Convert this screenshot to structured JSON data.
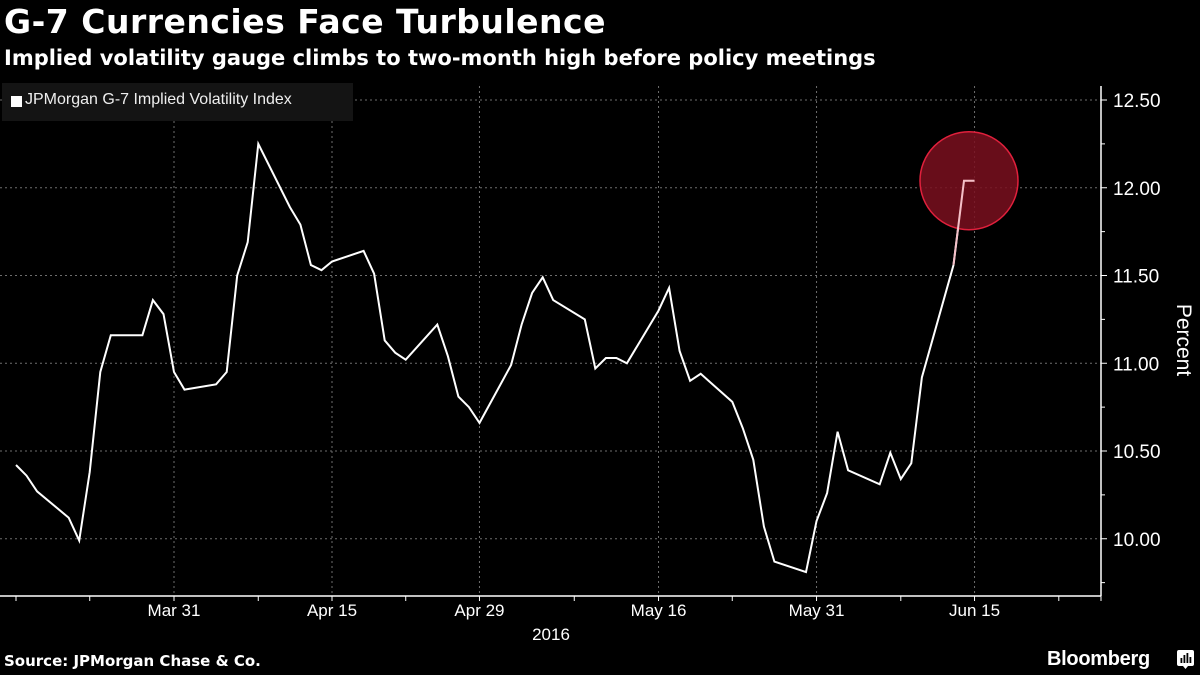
{
  "header": {
    "title": "G-7 Currencies Face Turbulence",
    "subtitle": "Implied volatility gauge climbs to two-month high before policy meetings"
  },
  "legend": {
    "label": "JPMorgan G-7 Implied Volatility Index",
    "swatch_color": "#ffffff"
  },
  "footer": {
    "source": "Source: JPMorgan Chase & Co.",
    "brand": "Bloomberg",
    "brand_icon": "bloomberg-chart-icon"
  },
  "colors": {
    "background": "#000000",
    "line": "#ffffff",
    "grid": "#6e6e6e",
    "highlight_fill": "#7a0f1e",
    "highlight_stroke": "#e0203c"
  },
  "chart_data": {
    "type": "line",
    "title": "G-7 Currencies Face Turbulence",
    "subtitle": "Implied volatility gauge climbs to two-month high before policy meetings",
    "xlabel": "2016",
    "ylabel": "Percent",
    "y_axis_position": "right",
    "ylim": [
      9.68,
      12.6
    ],
    "yticks": [
      10.0,
      10.5,
      11.0,
      11.5,
      12.0,
      12.5
    ],
    "ytick_labels": [
      "10.00",
      "10.50",
      "11.00",
      "11.50",
      "12.00",
      "12.50"
    ],
    "xlim": [
      "2016-03-16",
      "2016-07-02"
    ],
    "xticks": [
      "2016-03-31",
      "2016-04-15",
      "2016-04-29",
      "2016-05-16",
      "2016-05-31",
      "2016-06-15"
    ],
    "xtick_labels": [
      "Mar 31",
      "Apr 15",
      "Apr 29",
      "May 16",
      "May 31",
      "Jun 15"
    ],
    "minor_xticks": [
      "2016-03-16",
      "2016-03-23",
      "2016-04-08",
      "2016-04-22",
      "2016-05-08",
      "2016-05-23",
      "2016-06-08",
      "2016-06-23",
      "2016-07-02"
    ],
    "grid": true,
    "legend_position": "top-left",
    "series": [
      {
        "name": "JPMorgan G-7 Implied Volatility Index",
        "color": "#ffffff",
        "x": [
          "2016-03-16",
          "2016-03-17",
          "2016-03-18",
          "2016-03-21",
          "2016-03-22",
          "2016-03-23",
          "2016-03-24",
          "2016-03-25",
          "2016-03-28",
          "2016-03-29",
          "2016-03-30",
          "2016-03-31",
          "2016-04-01",
          "2016-04-04",
          "2016-04-05",
          "2016-04-06",
          "2016-04-07",
          "2016-04-08",
          "2016-04-11",
          "2016-04-12",
          "2016-04-13",
          "2016-04-14",
          "2016-04-15",
          "2016-04-18",
          "2016-04-19",
          "2016-04-20",
          "2016-04-21",
          "2016-04-22",
          "2016-04-25",
          "2016-04-26",
          "2016-04-27",
          "2016-04-28",
          "2016-04-29",
          "2016-05-02",
          "2016-05-03",
          "2016-05-04",
          "2016-05-05",
          "2016-05-06",
          "2016-05-09",
          "2016-05-10",
          "2016-05-11",
          "2016-05-12",
          "2016-05-13",
          "2016-05-16",
          "2016-05-17",
          "2016-05-18",
          "2016-05-19",
          "2016-05-20",
          "2016-05-23",
          "2016-05-24",
          "2016-05-25",
          "2016-05-26",
          "2016-05-27",
          "2016-05-30",
          "2016-05-31",
          "2016-06-01",
          "2016-06-02",
          "2016-06-03",
          "2016-06-06",
          "2016-06-07",
          "2016-06-08",
          "2016-06-09",
          "2016-06-10",
          "2016-06-13",
          "2016-06-14",
          "2016-06-15"
        ],
        "values": [
          10.42,
          10.36,
          10.27,
          10.12,
          9.99,
          10.38,
          10.95,
          11.16,
          11.16,
          11.36,
          11.28,
          10.95,
          10.85,
          10.88,
          10.95,
          11.5,
          11.69,
          12.25,
          11.89,
          11.79,
          11.56,
          11.53,
          11.58,
          11.64,
          11.51,
          11.13,
          11.06,
          11.02,
          11.22,
          11.04,
          10.81,
          10.75,
          10.66,
          10.99,
          11.22,
          11.4,
          11.49,
          11.36,
          11.25,
          10.97,
          11.03,
          11.03,
          11.0,
          11.3,
          11.43,
          11.07,
          10.9,
          10.94,
          10.78,
          10.63,
          10.45,
          10.07,
          9.87,
          9.81,
          10.1,
          10.26,
          10.61,
          10.39,
          10.31,
          10.49,
          10.34,
          10.43,
          10.92,
          11.56,
          12.04,
          12.04
        ]
      }
    ],
    "annotations": [
      {
        "type": "circle-highlight",
        "target": "latest value",
        "x": "2016-06-14",
        "value": 12.04
      }
    ]
  }
}
